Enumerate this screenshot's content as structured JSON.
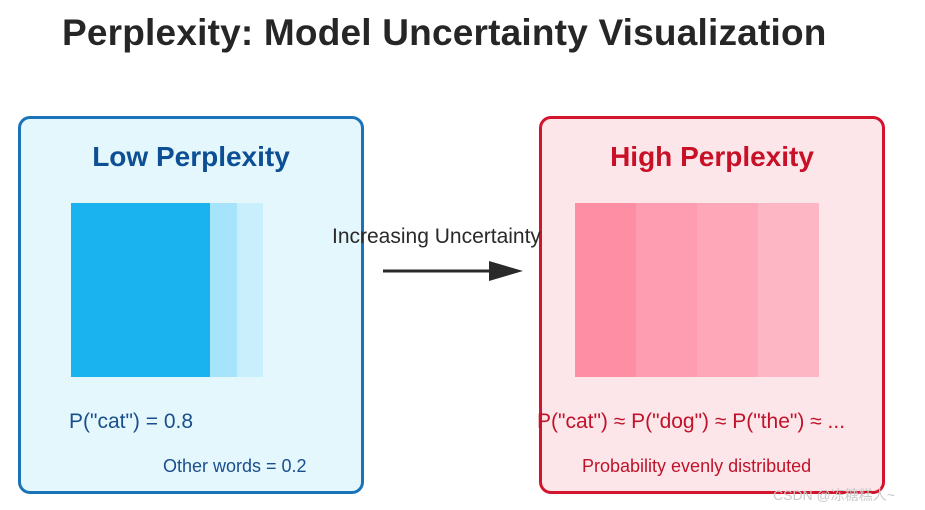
{
  "title": "Perplexity: Model Uncertainty Visualization",
  "low_panel": {
    "title": "Low Perplexity",
    "probability_text": "P(\"cat\") = 0.8",
    "sub_text": "Other words = 0.2",
    "border_color": "#1a73b8",
    "fill_color": "#e3f7fd",
    "bar_colors": [
      "#1ab3f0",
      "#a6e4fb",
      "#c9effc",
      "#e3f7fd"
    ]
  },
  "high_panel": {
    "title": "High Perplexity",
    "probability_text": "P(\"cat\") ≈ P(\"dog\") ≈ P(\"the\") ≈ ...",
    "sub_text": "Probability evenly distributed",
    "border_color": "#d2142d",
    "fill_color": "#fde6ea",
    "bar_colors": [
      "#fd8ea4",
      "#fe9db1",
      "#fda7b8",
      "#fdb6c4"
    ]
  },
  "arrow": {
    "label": "Increasing Uncertainty"
  },
  "watermark": "CSDN @冻糖糕人~"
}
